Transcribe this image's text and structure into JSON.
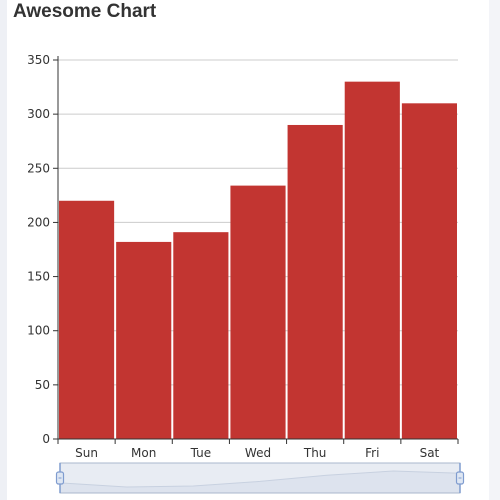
{
  "chart_data": {
    "type": "bar",
    "title": "Awesome Chart",
    "categories": [
      "Sun",
      "Mon",
      "Tue",
      "Wed",
      "Thu",
      "Fri",
      "Sat"
    ],
    "values": [
      220,
      182,
      191,
      234,
      290,
      330,
      310
    ],
    "ylim": [
      0,
      350
    ],
    "yticks": [
      0,
      50,
      100,
      150,
      200,
      250,
      300,
      350
    ],
    "grid": true,
    "colors": {
      "bar": "#c23531",
      "grid": "#cccccc",
      "axis": "#333333",
      "zoom_fill": "#d6dde9",
      "zoom_border": "#aab7cc",
      "zoom_handle": "#7f9ccf"
    },
    "data_zoom": {
      "start_percent": 0,
      "end_percent": 100
    }
  }
}
